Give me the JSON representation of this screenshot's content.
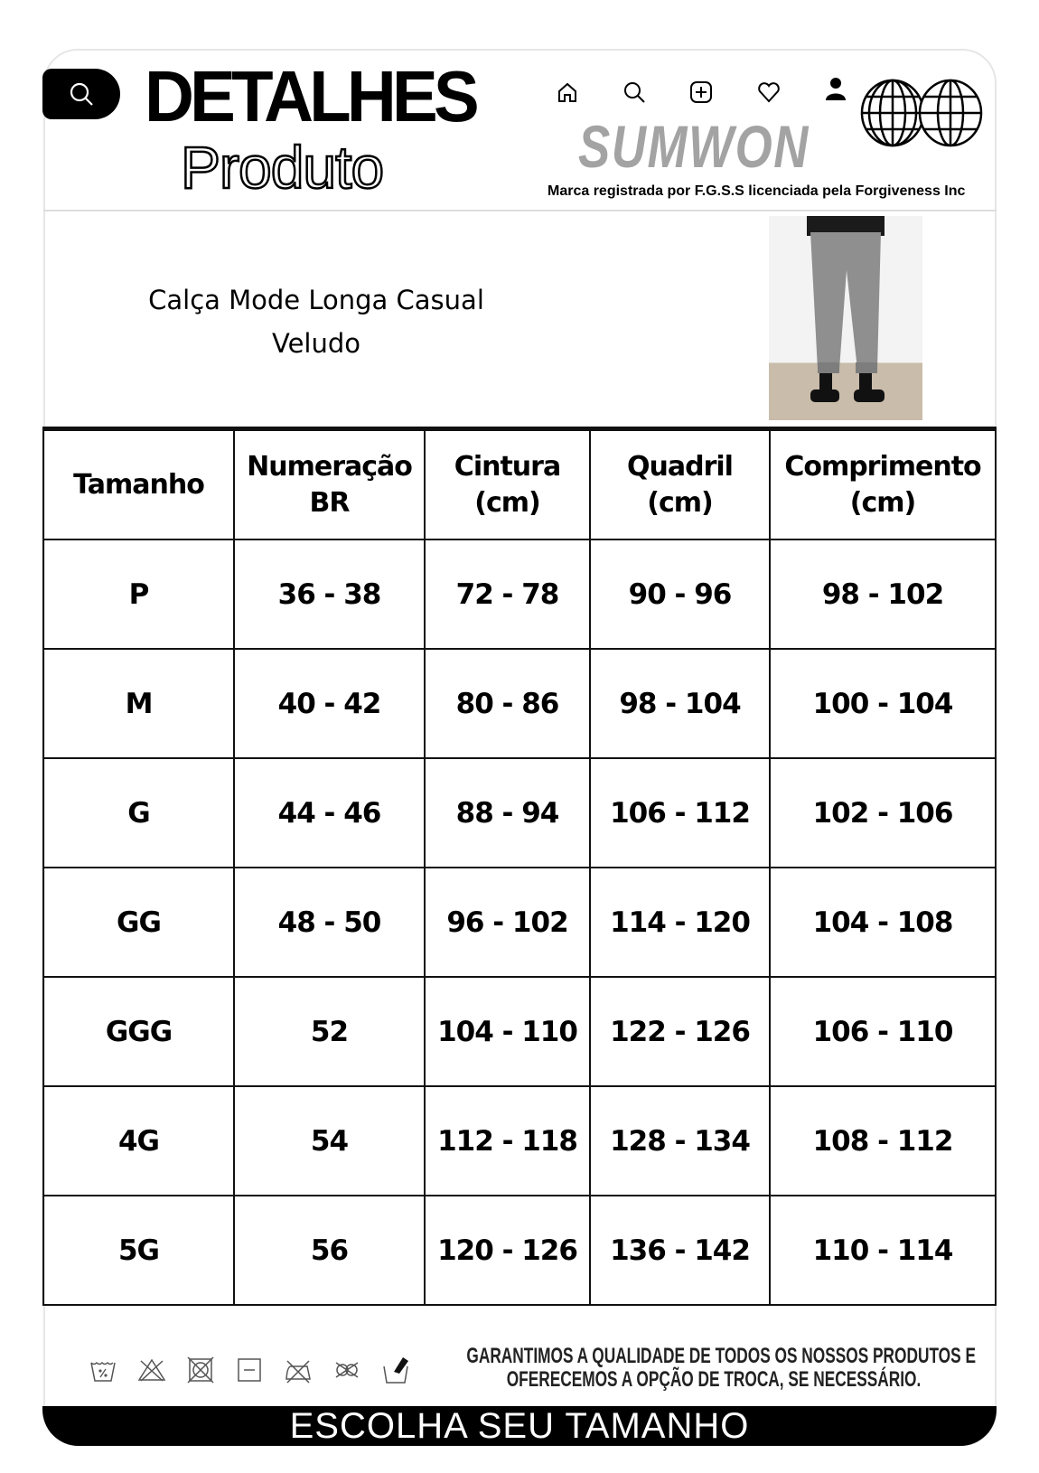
{
  "header": {
    "title_line1": "DETALHES",
    "title_line2": "Produto",
    "brand": "SUMWON",
    "tagline": "Marca registrada por F.G.S.S licenciada pela Forgiveness Inc",
    "nav_icons": [
      "home-icon",
      "search-icon",
      "add-icon",
      "heart-icon",
      "user-icon"
    ]
  },
  "product": {
    "name_line1": "Calça Mode Longa Casual",
    "name_line2": "Veludo"
  },
  "size_table": {
    "headers": [
      [
        "Tamanho",
        ""
      ],
      [
        "Numeração",
        "BR"
      ],
      [
        "Cintura",
        "(cm)"
      ],
      [
        "Quadril",
        "(cm)"
      ],
      [
        "Comprimento",
        "(cm)"
      ]
    ],
    "rows": [
      [
        "P",
        "36 - 38",
        "72 - 78",
        "90 - 96",
        "98 - 102"
      ],
      [
        "M",
        "40 - 42",
        "80 - 86",
        "98 - 104",
        "100 - 104"
      ],
      [
        "G",
        "44 - 46",
        "88 - 94",
        "106 - 112",
        "102 - 106"
      ],
      [
        "GG",
        "48 - 50",
        "96 - 102",
        "114 - 120",
        "104 - 108"
      ],
      [
        "GGG",
        "52",
        "104 - 110",
        "122 - 126",
        "106 - 110"
      ],
      [
        "4G",
        "54",
        "112 - 118",
        "128 - 134",
        "108 - 112"
      ],
      [
        "5G",
        "56",
        "120 - 126",
        "136 - 142",
        "110 - 114"
      ]
    ]
  },
  "footer": {
    "guarantee_line1": "GARANTIMOS A QUALIDADE DE TODOS OS NOSSOS PRODUTOS E",
    "guarantee_line2": "OFERECEMOS A OPÇÃO DE TROCA, SE NECESSÁRIO.",
    "cta": "ESCOLHA SEU TAMANHO",
    "care_icons": [
      "wash-30-icon",
      "no-bleach-icon",
      "no-tumble-dry-icon",
      "dry-flat-icon",
      "no-iron-icon",
      "no-dry-clean-icon",
      "hand-wash-icon"
    ]
  }
}
